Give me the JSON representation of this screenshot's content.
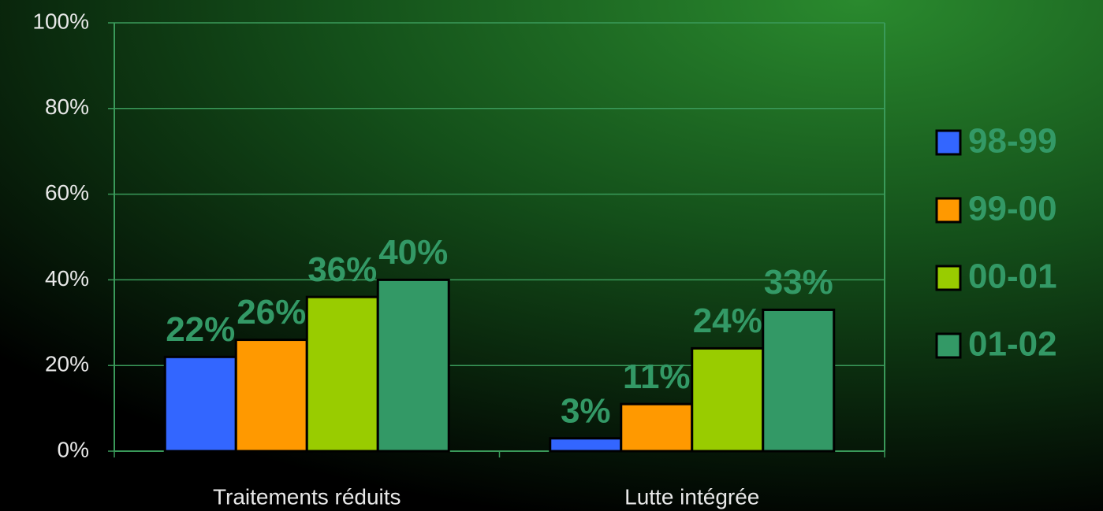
{
  "chart_data": {
    "type": "bar",
    "categories": [
      "Traitements réduits",
      "Lutte intégrée"
    ],
    "series": [
      {
        "name": "98-99",
        "color": "#3366ff",
        "values": [
          22,
          3
        ],
        "value_labels": [
          "22%",
          "3%"
        ]
      },
      {
        "name": "99-00",
        "color": "#ff9900",
        "values": [
          26,
          11
        ],
        "value_labels": [
          "26%",
          "11%"
        ]
      },
      {
        "name": "00-01",
        "color": "#99cc00",
        "values": [
          36,
          24
        ],
        "value_labels": [
          "36%",
          "24%"
        ]
      },
      {
        "name": "01-02",
        "color": "#339966",
        "values": [
          40,
          33
        ],
        "value_labels": [
          "40%",
          "33%"
        ]
      }
    ],
    "ylim": [
      0,
      100
    ],
    "yticks": [
      {
        "value": 0,
        "label": "0%"
      },
      {
        "value": 20,
        "label": "20%"
      },
      {
        "value": 40,
        "label": "40%"
      },
      {
        "value": 60,
        "label": "60%"
      },
      {
        "value": 80,
        "label": "80%"
      },
      {
        "value": 100,
        "label": "100%"
      }
    ],
    "grid": true,
    "legend": "right"
  }
}
